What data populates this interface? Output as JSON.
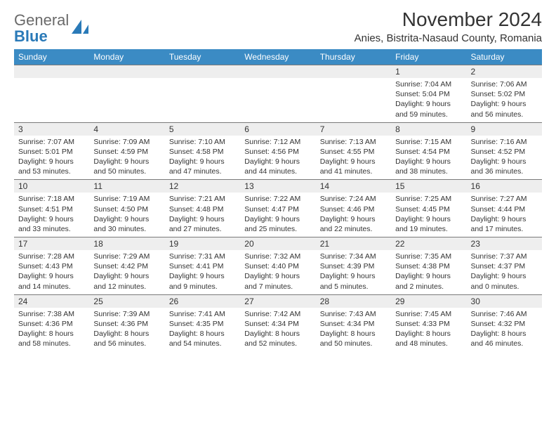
{
  "brand": {
    "text1": "General",
    "text2": "Blue"
  },
  "title": "November 2024",
  "location": "Anies, Bistrita-Nasaud County, Romania",
  "colors": {
    "header_bg": "#3b8bc4",
    "header_text": "#ffffff",
    "daynum_bg": "#eeeeee",
    "border": "#7a7a7a",
    "brand_gray": "#6a6a6a",
    "brand_blue": "#2a7ab8",
    "body_text": "#333333",
    "page_bg": "#ffffff"
  },
  "days_of_week": [
    "Sunday",
    "Monday",
    "Tuesday",
    "Wednesday",
    "Thursday",
    "Friday",
    "Saturday"
  ],
  "weeks": [
    [
      {
        "n": "",
        "sunrise": "",
        "sunset": "",
        "daylight": ""
      },
      {
        "n": "",
        "sunrise": "",
        "sunset": "",
        "daylight": ""
      },
      {
        "n": "",
        "sunrise": "",
        "sunset": "",
        "daylight": ""
      },
      {
        "n": "",
        "sunrise": "",
        "sunset": "",
        "daylight": ""
      },
      {
        "n": "",
        "sunrise": "",
        "sunset": "",
        "daylight": ""
      },
      {
        "n": "1",
        "sunrise": "Sunrise: 7:04 AM",
        "sunset": "Sunset: 5:04 PM",
        "daylight": "Daylight: 9 hours and 59 minutes."
      },
      {
        "n": "2",
        "sunrise": "Sunrise: 7:06 AM",
        "sunset": "Sunset: 5:02 PM",
        "daylight": "Daylight: 9 hours and 56 minutes."
      }
    ],
    [
      {
        "n": "3",
        "sunrise": "Sunrise: 7:07 AM",
        "sunset": "Sunset: 5:01 PM",
        "daylight": "Daylight: 9 hours and 53 minutes."
      },
      {
        "n": "4",
        "sunrise": "Sunrise: 7:09 AM",
        "sunset": "Sunset: 4:59 PM",
        "daylight": "Daylight: 9 hours and 50 minutes."
      },
      {
        "n": "5",
        "sunrise": "Sunrise: 7:10 AM",
        "sunset": "Sunset: 4:58 PM",
        "daylight": "Daylight: 9 hours and 47 minutes."
      },
      {
        "n": "6",
        "sunrise": "Sunrise: 7:12 AM",
        "sunset": "Sunset: 4:56 PM",
        "daylight": "Daylight: 9 hours and 44 minutes."
      },
      {
        "n": "7",
        "sunrise": "Sunrise: 7:13 AM",
        "sunset": "Sunset: 4:55 PM",
        "daylight": "Daylight: 9 hours and 41 minutes."
      },
      {
        "n": "8",
        "sunrise": "Sunrise: 7:15 AM",
        "sunset": "Sunset: 4:54 PM",
        "daylight": "Daylight: 9 hours and 38 minutes."
      },
      {
        "n": "9",
        "sunrise": "Sunrise: 7:16 AM",
        "sunset": "Sunset: 4:52 PM",
        "daylight": "Daylight: 9 hours and 36 minutes."
      }
    ],
    [
      {
        "n": "10",
        "sunrise": "Sunrise: 7:18 AM",
        "sunset": "Sunset: 4:51 PM",
        "daylight": "Daylight: 9 hours and 33 minutes."
      },
      {
        "n": "11",
        "sunrise": "Sunrise: 7:19 AM",
        "sunset": "Sunset: 4:50 PM",
        "daylight": "Daylight: 9 hours and 30 minutes."
      },
      {
        "n": "12",
        "sunrise": "Sunrise: 7:21 AM",
        "sunset": "Sunset: 4:48 PM",
        "daylight": "Daylight: 9 hours and 27 minutes."
      },
      {
        "n": "13",
        "sunrise": "Sunrise: 7:22 AM",
        "sunset": "Sunset: 4:47 PM",
        "daylight": "Daylight: 9 hours and 25 minutes."
      },
      {
        "n": "14",
        "sunrise": "Sunrise: 7:24 AM",
        "sunset": "Sunset: 4:46 PM",
        "daylight": "Daylight: 9 hours and 22 minutes."
      },
      {
        "n": "15",
        "sunrise": "Sunrise: 7:25 AM",
        "sunset": "Sunset: 4:45 PM",
        "daylight": "Daylight: 9 hours and 19 minutes."
      },
      {
        "n": "16",
        "sunrise": "Sunrise: 7:27 AM",
        "sunset": "Sunset: 4:44 PM",
        "daylight": "Daylight: 9 hours and 17 minutes."
      }
    ],
    [
      {
        "n": "17",
        "sunrise": "Sunrise: 7:28 AM",
        "sunset": "Sunset: 4:43 PM",
        "daylight": "Daylight: 9 hours and 14 minutes."
      },
      {
        "n": "18",
        "sunrise": "Sunrise: 7:29 AM",
        "sunset": "Sunset: 4:42 PM",
        "daylight": "Daylight: 9 hours and 12 minutes."
      },
      {
        "n": "19",
        "sunrise": "Sunrise: 7:31 AM",
        "sunset": "Sunset: 4:41 PM",
        "daylight": "Daylight: 9 hours and 9 minutes."
      },
      {
        "n": "20",
        "sunrise": "Sunrise: 7:32 AM",
        "sunset": "Sunset: 4:40 PM",
        "daylight": "Daylight: 9 hours and 7 minutes."
      },
      {
        "n": "21",
        "sunrise": "Sunrise: 7:34 AM",
        "sunset": "Sunset: 4:39 PM",
        "daylight": "Daylight: 9 hours and 5 minutes."
      },
      {
        "n": "22",
        "sunrise": "Sunrise: 7:35 AM",
        "sunset": "Sunset: 4:38 PM",
        "daylight": "Daylight: 9 hours and 2 minutes."
      },
      {
        "n": "23",
        "sunrise": "Sunrise: 7:37 AM",
        "sunset": "Sunset: 4:37 PM",
        "daylight": "Daylight: 9 hours and 0 minutes."
      }
    ],
    [
      {
        "n": "24",
        "sunrise": "Sunrise: 7:38 AM",
        "sunset": "Sunset: 4:36 PM",
        "daylight": "Daylight: 8 hours and 58 minutes."
      },
      {
        "n": "25",
        "sunrise": "Sunrise: 7:39 AM",
        "sunset": "Sunset: 4:36 PM",
        "daylight": "Daylight: 8 hours and 56 minutes."
      },
      {
        "n": "26",
        "sunrise": "Sunrise: 7:41 AM",
        "sunset": "Sunset: 4:35 PM",
        "daylight": "Daylight: 8 hours and 54 minutes."
      },
      {
        "n": "27",
        "sunrise": "Sunrise: 7:42 AM",
        "sunset": "Sunset: 4:34 PM",
        "daylight": "Daylight: 8 hours and 52 minutes."
      },
      {
        "n": "28",
        "sunrise": "Sunrise: 7:43 AM",
        "sunset": "Sunset: 4:34 PM",
        "daylight": "Daylight: 8 hours and 50 minutes."
      },
      {
        "n": "29",
        "sunrise": "Sunrise: 7:45 AM",
        "sunset": "Sunset: 4:33 PM",
        "daylight": "Daylight: 8 hours and 48 minutes."
      },
      {
        "n": "30",
        "sunrise": "Sunrise: 7:46 AM",
        "sunset": "Sunset: 4:32 PM",
        "daylight": "Daylight: 8 hours and 46 minutes."
      }
    ]
  ]
}
